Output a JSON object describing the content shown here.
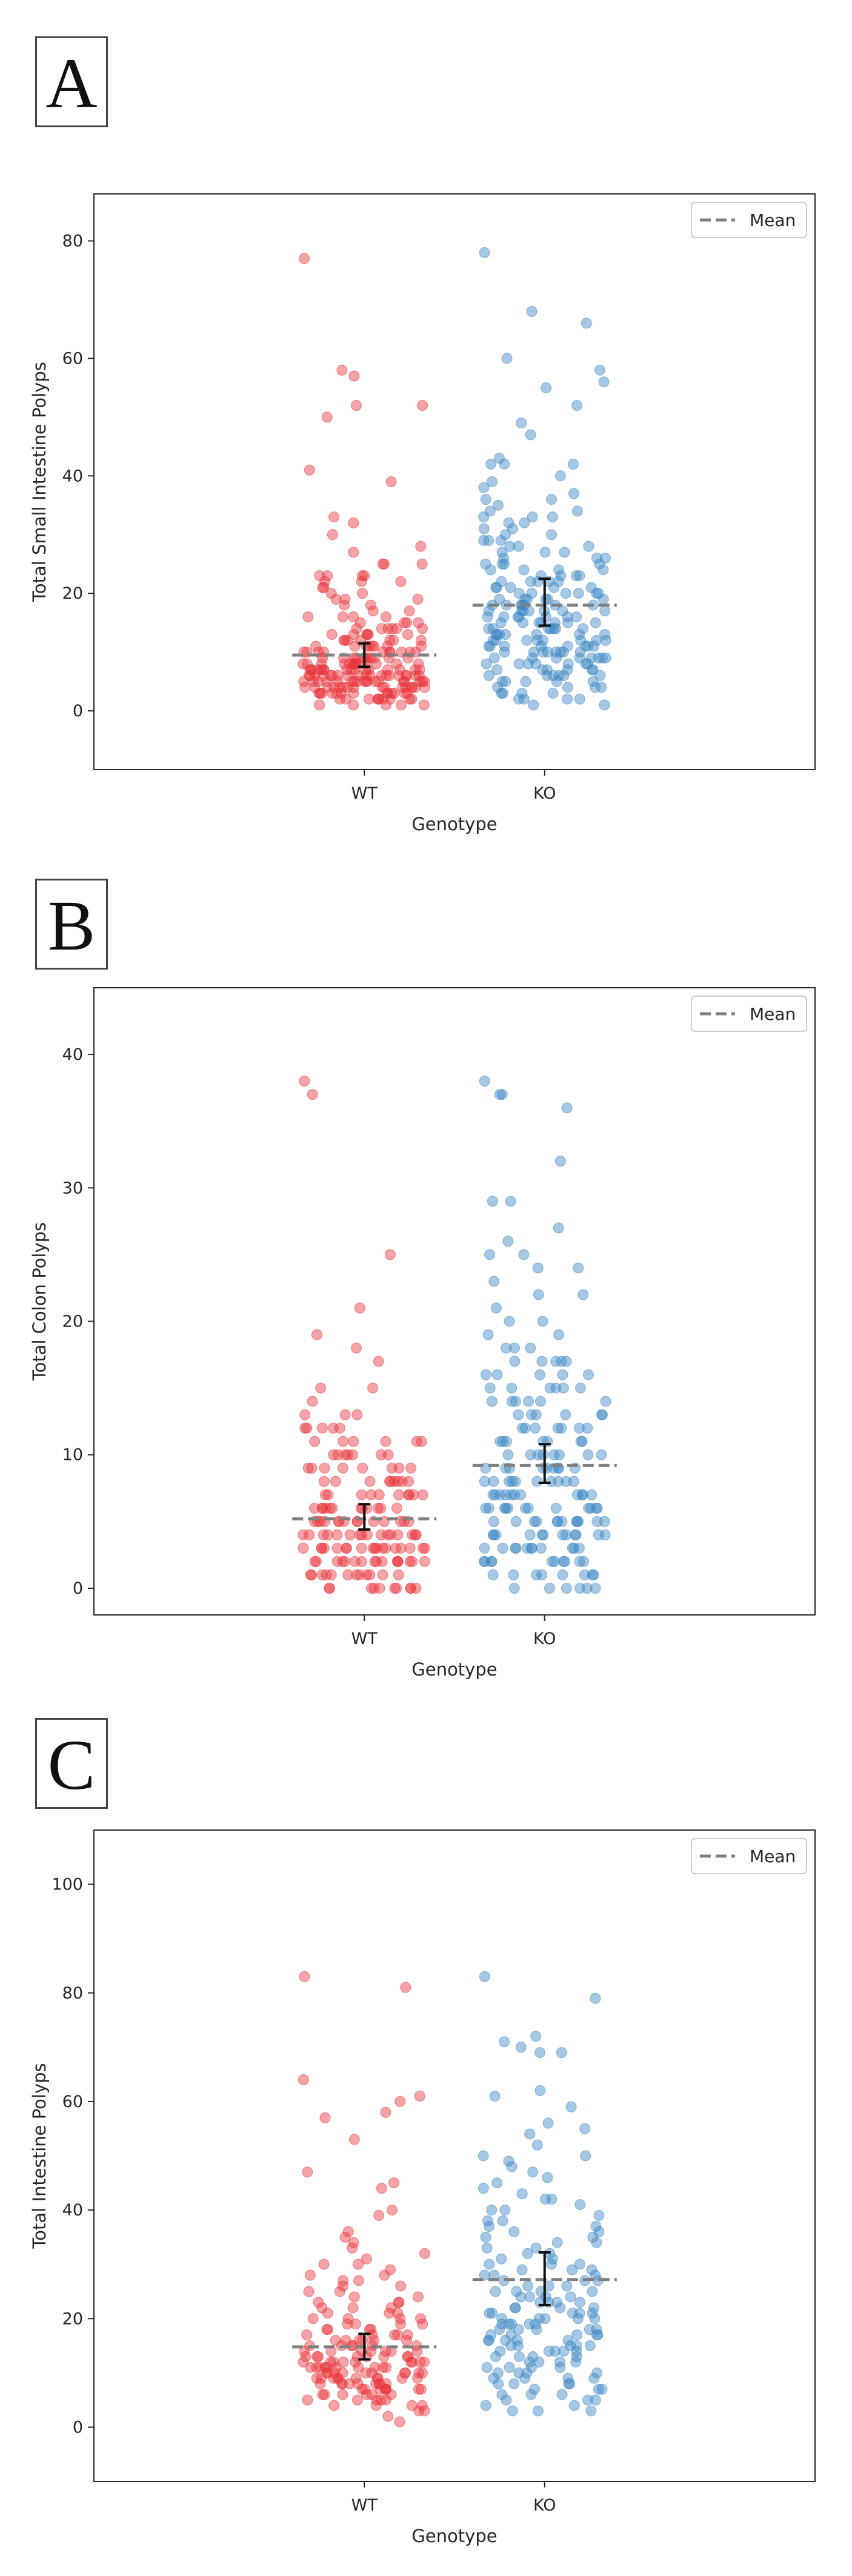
{
  "panels": [
    {
      "label": "A"
    },
    {
      "label": "B"
    },
    {
      "label": "C"
    }
  ],
  "colors": {
    "wt": "#e8343a",
    "ko": "#3a86c4",
    "mean_line": "#808080",
    "error_bar": "#111111"
  },
  "chart_data": [
    {
      "type": "scatter",
      "title": "",
      "xlabel": "Genotype",
      "ylabel": "Total Small Intestine Polyps",
      "categories": [
        "WT",
        "KO"
      ],
      "ylim": [
        -10,
        88
      ],
      "yticks": [
        0,
        20,
        40,
        60,
        80
      ],
      "legend": {
        "label": "Mean",
        "position": "top-right"
      },
      "grid": false,
      "series": [
        {
          "category": "WT",
          "mean": 9.5,
          "ci": [
            7.5,
            11.5
          ],
          "values": [
            77,
            58,
            57,
            52,
            52,
            50,
            41,
            39,
            33,
            32,
            30,
            28,
            27,
            25,
            25,
            25,
            23,
            23,
            23,
            23,
            22,
            22,
            22,
            21,
            21,
            20,
            20,
            19,
            19,
            19,
            18,
            18,
            17,
            17,
            16,
            16,
            16,
            16,
            15,
            15,
            15,
            15,
            14,
            14,
            14,
            14,
            14,
            14,
            13,
            13,
            13,
            13,
            13,
            13,
            12,
            12,
            12,
            12,
            12,
            12,
            12,
            11,
            11,
            11,
            11,
            11,
            11,
            11,
            11,
            10,
            10,
            10,
            10,
            10,
            10,
            10,
            10,
            10,
            10,
            9,
            9,
            9,
            9,
            9,
            9,
            9,
            9,
            9,
            9,
            9,
            8,
            8,
            8,
            8,
            8,
            8,
            8,
            8,
            8,
            8,
            8,
            8,
            8,
            7,
            7,
            7,
            7,
            7,
            7,
            7,
            7,
            7,
            7,
            7,
            7,
            7,
            7,
            7,
            7,
            6,
            6,
            6,
            6,
            6,
            6,
            6,
            6,
            6,
            6,
            6,
            6,
            6,
            6,
            6,
            6,
            6,
            6,
            6,
            5,
            5,
            5,
            5,
            5,
            5,
            5,
            5,
            5,
            5,
            5,
            5,
            5,
            5,
            5,
            5,
            5,
            5,
            4,
            4,
            4,
            4,
            4,
            4,
            4,
            4,
            4,
            4,
            4,
            4,
            4,
            4,
            4,
            4,
            3,
            3,
            3,
            3,
            3,
            3,
            3,
            3,
            3,
            3,
            3,
            3,
            3,
            2,
            2,
            2,
            2,
            2,
            2,
            2,
            2,
            2,
            2,
            1,
            1,
            1,
            1,
            1
          ]
        },
        {
          "category": "KO",
          "mean": 18,
          "ci": [
            14.5,
            22.5
          ],
          "values": [
            78,
            68,
            66,
            60,
            58,
            56,
            55,
            52,
            49,
            47,
            43,
            42,
            42,
            42,
            40,
            39,
            38,
            37,
            36,
            36,
            35,
            34,
            34,
            33,
            33,
            33,
            32,
            32,
            31,
            31,
            30,
            30,
            29,
            29,
            29,
            28,
            28,
            28,
            27,
            27,
            27,
            26,
            26,
            26,
            25,
            25,
            25,
            25,
            24,
            24,
            24,
            24,
            23,
            23,
            23,
            23,
            22,
            22,
            22,
            22,
            22,
            21,
            21,
            21,
            21,
            21,
            20,
            20,
            20,
            20,
            20,
            20,
            19,
            19,
            19,
            19,
            19,
            19,
            18,
            18,
            18,
            18,
            18,
            18,
            18,
            17,
            17,
            17,
            17,
            17,
            17,
            17,
            16,
            16,
            16,
            16,
            16,
            16,
            16,
            15,
            15,
            15,
            15,
            15,
            15,
            15,
            14,
            14,
            14,
            14,
            14,
            14,
            14,
            13,
            13,
            13,
            13,
            13,
            13,
            13,
            12,
            12,
            12,
            12,
            12,
            12,
            12,
            12,
            11,
            11,
            11,
            11,
            11,
            11,
            11,
            11,
            10,
            10,
            10,
            10,
            10,
            10,
            10,
            10,
            9,
            9,
            9,
            9,
            9,
            9,
            9,
            9,
            8,
            8,
            8,
            8,
            8,
            8,
            8,
            7,
            7,
            7,
            7,
            7,
            7,
            6,
            6,
            6,
            6,
            6,
            6,
            5,
            5,
            5,
            5,
            5,
            4,
            4,
            4,
            4,
            3,
            3,
            3,
            3,
            2,
            2,
            2,
            2,
            1,
            1
          ]
        }
      ]
    },
    {
      "type": "scatter",
      "title": "",
      "xlabel": "Genotype",
      "ylabel": "Total Colon Polyps",
      "categories": [
        "WT",
        "KO"
      ],
      "ylim": [
        -2,
        45
      ],
      "yticks": [
        0,
        10,
        20,
        30,
        40
      ],
      "legend": {
        "label": "Mean",
        "position": "top-right"
      },
      "grid": false,
      "series": [
        {
          "category": "WT",
          "mean": 5.2,
          "ci": [
            4.4,
            6.3
          ],
          "values": [
            38,
            37,
            25,
            21,
            19,
            18,
            17,
            15,
            15,
            14,
            13,
            13,
            13,
            12,
            12,
            12,
            12,
            12,
            11,
            11,
            11,
            11,
            11,
            11,
            10,
            10,
            10,
            10,
            10,
            10,
            10,
            9,
            9,
            9,
            9,
            9,
            9,
            9,
            9,
            8,
            8,
            8,
            8,
            8,
            8,
            8,
            8,
            8,
            7,
            7,
            7,
            7,
            7,
            7,
            7,
            7,
            7,
            7,
            6,
            6,
            6,
            6,
            6,
            6,
            6,
            6,
            6,
            6,
            6,
            6,
            5,
            5,
            5,
            5,
            5,
            5,
            5,
            5,
            5,
            5,
            5,
            5,
            5,
            5,
            4,
            4,
            4,
            4,
            4,
            4,
            4,
            4,
            4,
            4,
            4,
            4,
            4,
            4,
            4,
            4,
            3,
            3,
            3,
            3,
            3,
            3,
            3,
            3,
            3,
            3,
            3,
            3,
            3,
            3,
            3,
            3,
            3,
            3,
            2,
            2,
            2,
            2,
            2,
            2,
            2,
            2,
            2,
            2,
            2,
            2,
            2,
            2,
            2,
            2,
            1,
            1,
            1,
            1,
            1,
            1,
            1,
            1,
            1,
            1,
            1,
            1,
            0,
            0,
            0,
            0,
            0,
            0,
            0,
            0,
            0,
            0
          ]
        },
        {
          "category": "KO",
          "mean": 9.2,
          "ci": [
            7.9,
            10.8
          ],
          "values": [
            38,
            37,
            37,
            36,
            32,
            29,
            29,
            27,
            26,
            25,
            25,
            24,
            24,
            23,
            22,
            22,
            21,
            20,
            20,
            19,
            19,
            18,
            18,
            18,
            17,
            17,
            17,
            17,
            17,
            16,
            16,
            16,
            16,
            16,
            15,
            15,
            15,
            15,
            15,
            15,
            14,
            14,
            14,
            14,
            14,
            14,
            13,
            13,
            13,
            13,
            13,
            13,
            12,
            12,
            12,
            12,
            12,
            12,
            12,
            11,
            11,
            11,
            11,
            11,
            11,
            11,
            10,
            10,
            10,
            10,
            10,
            10,
            10,
            10,
            9,
            9,
            9,
            9,
            9,
            9,
            9,
            9,
            9,
            8,
            8,
            8,
            8,
            8,
            8,
            8,
            8,
            8,
            8,
            7,
            7,
            7,
            7,
            7,
            7,
            7,
            7,
            7,
            7,
            7,
            6,
            6,
            6,
            6,
            6,
            6,
            6,
            6,
            6,
            6,
            6,
            6,
            5,
            5,
            5,
            5,
            5,
            5,
            5,
            5,
            5,
            5,
            5,
            5,
            4,
            4,
            4,
            4,
            4,
            4,
            4,
            4,
            4,
            4,
            4,
            4,
            3,
            3,
            3,
            3,
            3,
            3,
            3,
            3,
            3,
            3,
            3,
            2,
            2,
            2,
            2,
            2,
            2,
            2,
            2,
            2,
            2,
            1,
            1,
            1,
            1,
            1,
            1,
            1,
            1,
            0,
            0,
            0,
            0,
            0,
            0
          ]
        }
      ]
    },
    {
      "type": "scatter",
      "title": "",
      "xlabel": "Genotype",
      "ylabel": "Total Intestine Polyps",
      "categories": [
        "WT",
        "KO"
      ],
      "ylim": [
        -10,
        110
      ],
      "yticks": [
        0,
        20,
        40,
        60,
        80,
        100
      ],
      "legend": {
        "label": "Mean",
        "position": "top-right"
      },
      "grid": false,
      "series": [
        {
          "category": "WT",
          "mean": 14.8,
          "ci": [
            12.5,
            17.2
          ],
          "values": [
            83,
            81,
            64,
            61,
            60,
            58,
            57,
            53,
            47,
            45,
            44,
            40,
            39,
            36,
            35,
            34,
            33,
            32,
            31,
            30,
            30,
            29,
            28,
            28,
            27,
            27,
            26,
            26,
            25,
            25,
            24,
            24,
            23,
            23,
            23,
            22,
            22,
            22,
            21,
            21,
            21,
            20,
            20,
            20,
            20,
            19,
            19,
            19,
            19,
            18,
            18,
            18,
            18,
            17,
            17,
            17,
            17,
            17,
            16,
            16,
            16,
            16,
            16,
            16,
            15,
            15,
            15,
            15,
            15,
            15,
            14,
            14,
            14,
            14,
            14,
            14,
            14,
            13,
            13,
            13,
            13,
            13,
            13,
            13,
            13,
            12,
            12,
            12,
            12,
            12,
            12,
            12,
            12,
            12,
            11,
            11,
            11,
            11,
            11,
            11,
            11,
            11,
            11,
            11,
            10,
            10,
            10,
            10,
            10,
            10,
            10,
            10,
            10,
            10,
            9,
            9,
            9,
            9,
            9,
            9,
            9,
            9,
            9,
            9,
            8,
            8,
            8,
            8,
            8,
            8,
            8,
            8,
            8,
            7,
            7,
            7,
            7,
            7,
            7,
            7,
            7,
            6,
            6,
            6,
            6,
            6,
            6,
            5,
            5,
            5,
            5,
            5,
            4,
            4,
            4,
            4,
            3,
            3,
            2,
            1
          ]
        },
        {
          "category": "KO",
          "mean": 27.2,
          "ci": [
            22.5,
            32.2
          ],
          "values": [
            83,
            79,
            72,
            71,
            70,
            69,
            69,
            62,
            61,
            59,
            56,
            55,
            54,
            52,
            50,
            50,
            49,
            48,
            47,
            46,
            45,
            44,
            43,
            42,
            42,
            41,
            40,
            40,
            39,
            38,
            38,
            37,
            37,
            36,
            36,
            35,
            35,
            34,
            34,
            33,
            33,
            32,
            32,
            31,
            31,
            30,
            30,
            30,
            29,
            29,
            29,
            28,
            28,
            28,
            27,
            27,
            27,
            26,
            26,
            26,
            25,
            25,
            25,
            25,
            24,
            24,
            24,
            24,
            23,
            23,
            23,
            23,
            22,
            22,
            22,
            22,
            21,
            21,
            21,
            21,
            21,
            20,
            20,
            20,
            20,
            20,
            19,
            19,
            19,
            19,
            19,
            18,
            18,
            18,
            18,
            18,
            17,
            17,
            17,
            17,
            17,
            16,
            16,
            16,
            16,
            16,
            15,
            15,
            15,
            15,
            15,
            14,
            14,
            14,
            14,
            14,
            13,
            13,
            13,
            13,
            12,
            12,
            12,
            12,
            11,
            11,
            11,
            11,
            10,
            10,
            10,
            10,
            9,
            9,
            9,
            9,
            8,
            8,
            8,
            8,
            7,
            7,
            7,
            6,
            6,
            6,
            5,
            5,
            5,
            4,
            4,
            3,
            3,
            3
          ]
        }
      ]
    }
  ]
}
